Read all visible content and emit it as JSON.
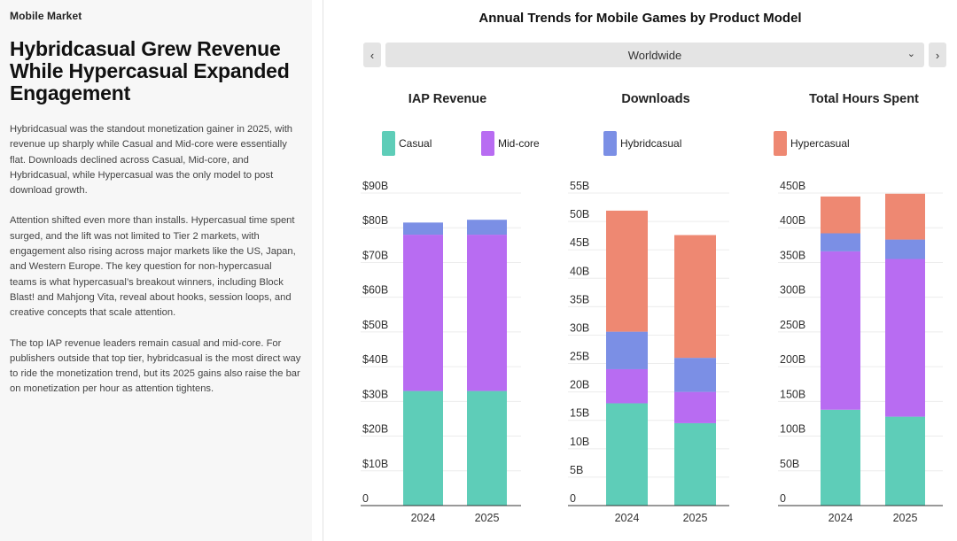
{
  "left": {
    "kicker": "Mobile Market",
    "headline": "Hybridcasual Grew Revenue While Hypercasual Expanded Engagement",
    "paragraphs": [
      "Hybridcasual was the standout monetization gainer in 2025, with revenue up sharply while Casual and Mid-core were essentially flat. Downloads declined across Casual, Mid-core, and Hybridcasual, while Hypercasual was the only model to post download growth.",
      "Attention shifted even more than installs. Hypercasual time spent surged, and the lift was not limited to Tier 2 markets, with engagement also rising across major markets like the US, Japan, and Western Europe. The key question for non-hypercasual teams is what hypercasual’s breakout winners, including Block Blast! and Mahjong Vita, reveal about hooks, session loops, and creative concepts that scale attention.",
      "The top IAP revenue leaders remain casual and mid-core. For publishers outside that top tier, hybridcasual is the most direct way to ride the monetization trend, but its 2025 gains also raise the bar on monetization per hour as attention tightens."
    ]
  },
  "header": {
    "title": "Annual Trends for Mobile Games by Product Model",
    "prev_icon": "‹",
    "next_icon": "›",
    "region": "Worldwide",
    "dropdown_icon": "⌄"
  },
  "colors": {
    "Casual": "#5ecdb8",
    "Mid-core": "#b86cf2",
    "Hybridcasual": "#7b8fe5",
    "Hypercasual": "#ee8872"
  },
  "legend": [
    "Casual",
    "Mid-core",
    "Hybridcasual",
    "Hypercasual"
  ],
  "chart_data": [
    {
      "type": "bar",
      "stacked": true,
      "title": "IAP Revenue",
      "categories": [
        "2024",
        "2025"
      ],
      "series": [
        {
          "name": "Casual",
          "values": [
            33,
            33
          ]
        },
        {
          "name": "Mid-core",
          "values": [
            45,
            45
          ]
        },
        {
          "name": "Hybridcasual",
          "values": [
            3.5,
            4.3
          ]
        },
        {
          "name": "Hypercasual",
          "values": [
            0,
            0
          ]
        }
      ],
      "yticks": [
        "0",
        "$10B",
        "$20B",
        "$30B",
        "$40B",
        "$50B",
        "$60B",
        "$70B",
        "$80B",
        "$90B"
      ],
      "ylim": [
        0,
        90
      ]
    },
    {
      "type": "bar",
      "stacked": true,
      "title": "Downloads",
      "categories": [
        "2024",
        "2025"
      ],
      "series": [
        {
          "name": "Casual",
          "values": [
            18,
            14.5
          ]
        },
        {
          "name": "Mid-core",
          "values": [
            6,
            5.5
          ]
        },
        {
          "name": "Hybridcasual",
          "values": [
            6.6,
            6
          ]
        },
        {
          "name": "Hypercasual",
          "values": [
            21.3,
            21.6
          ]
        }
      ],
      "yticks": [
        "0",
        "5B",
        "10B",
        "15B",
        "20B",
        "25B",
        "30B",
        "35B",
        "40B",
        "45B",
        "50B",
        "55B"
      ],
      "ylim": [
        0,
        55
      ]
    },
    {
      "type": "bar",
      "stacked": true,
      "title": "Total Hours Spent",
      "categories": [
        "2024",
        "2025"
      ],
      "series": [
        {
          "name": "Casual",
          "values": [
            138,
            128
          ]
        },
        {
          "name": "Mid-core",
          "values": [
            228,
            227
          ]
        },
        {
          "name": "Hybridcasual",
          "values": [
            26,
            28
          ]
        },
        {
          "name": "Hypercasual",
          "values": [
            53,
            66
          ]
        }
      ],
      "yticks": [
        "0",
        "50B",
        "100B",
        "150B",
        "200B",
        "250B",
        "300B",
        "350B",
        "400B",
        "450B"
      ],
      "ylim": [
        0,
        450
      ]
    }
  ]
}
